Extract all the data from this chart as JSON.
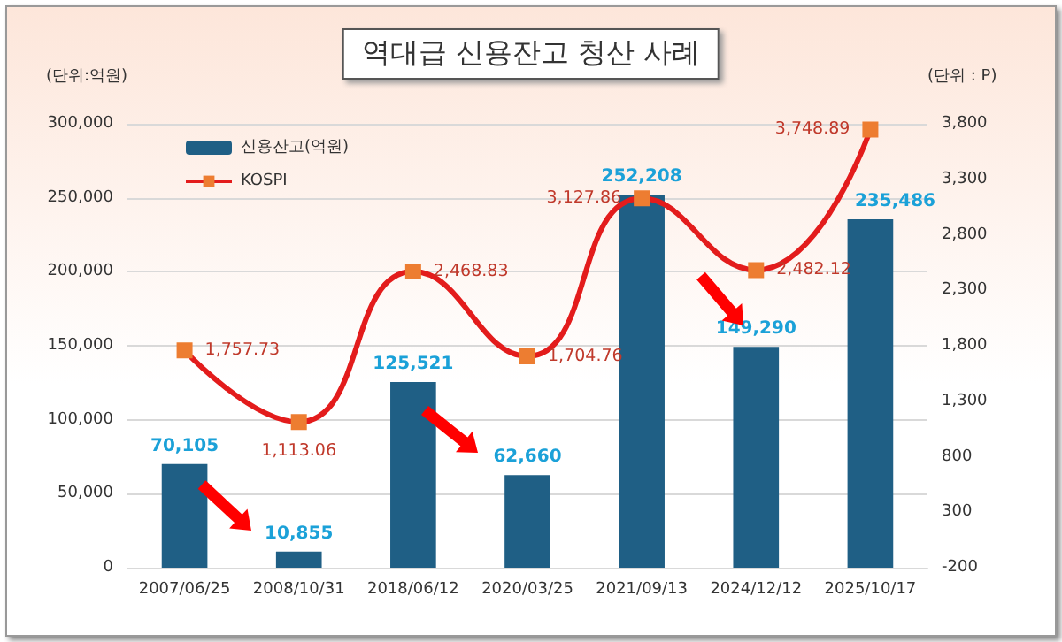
{
  "chart_data": {
    "type": "bar",
    "title": "역대급 신용잔고 청산 사례",
    "ylabel": "(단위:억원)",
    "y2label": "(단위 : P)",
    "categories": [
      "2007/06/25",
      "2008/10/31",
      "2018/06/12",
      "2020/03/25",
      "2021/09/13",
      "2024/12/12",
      "2025/10/17"
    ],
    "series": [
      {
        "name": "신용잔고(억원)",
        "color": "#1f5f85",
        "values": [
          70105,
          10855,
          125521,
          62660,
          252208,
          149290,
          235486
        ],
        "value_labels": [
          "70,105",
          "10,855",
          "125,521",
          "62,660",
          "252,208",
          "149,290",
          "235,486"
        ]
      },
      {
        "name": "KOSPI",
        "type": "line",
        "axis": "y2",
        "color": "#e31c1c",
        "marker": "square",
        "values": [
          1757.73,
          1113.06,
          2468.83,
          1704.76,
          3127.86,
          2482.12,
          3748.89
        ],
        "value_labels": [
          "1,757.73",
          "1,113.06",
          "2,468.83",
          "1,704.76",
          "3,127.86",
          "2,482.12",
          "3,748.89"
        ]
      }
    ],
    "ylim": [
      0,
      300000
    ],
    "yticks": [
      0,
      {
        "value": 50000,
        "label": "50,000"
      },
      {
        "value": 100000,
        "label": "100,000"
      },
      {
        "value": 150000,
        "label": "150,000"
      },
      {
        "value": 200000,
        "label": "200,000"
      },
      {
        "value": 250000,
        "label": "250,000"
      },
      {
        "value": 300000,
        "label": "300,000"
      }
    ],
    "y2lim": [
      -200,
      3800
    ],
    "y2ticks": [
      -200,
      300,
      800,
      {
        "value": 1300,
        "label": "1,300"
      },
      {
        "value": 1800,
        "label": "1,800"
      },
      {
        "value": 2300,
        "label": "2,300"
      },
      {
        "value": 2800,
        "label": "2,800"
      },
      {
        "value": 3300,
        "label": "3,300"
      },
      {
        "value": 3800,
        "label": "3,800"
      }
    ],
    "grid": "y",
    "legend": "top left"
  }
}
